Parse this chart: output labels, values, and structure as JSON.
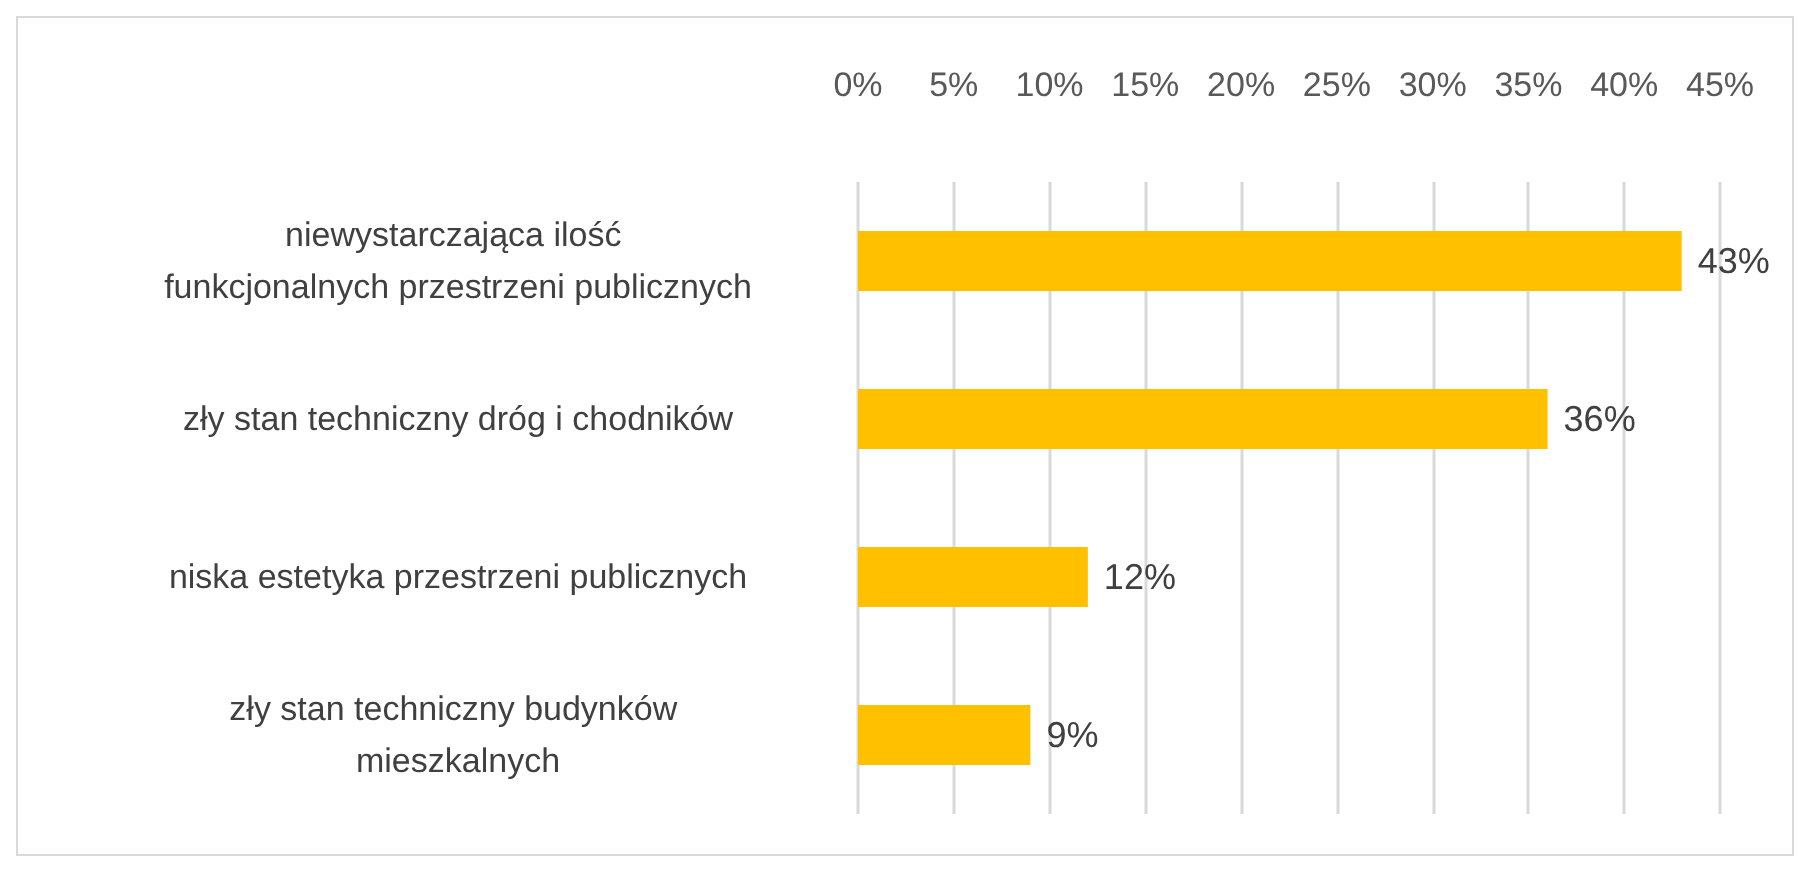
{
  "chart_data": {
    "type": "bar",
    "orientation": "horizontal",
    "categories": [
      "niewystarczająca ilość funkcjonalnych przestrzeni publicznych",
      "zły stan techniczny dróg i chodników",
      "niska estetyka przestrzeni publicznych",
      "zły stan techniczny budynków mieszkalnych"
    ],
    "values": [
      43,
      36,
      12,
      9
    ],
    "value_labels": [
      "43%",
      "36%",
      "12%",
      "9%"
    ],
    "color": "#ffc000",
    "xlim": [
      0,
      45
    ],
    "xticks": [
      {
        "value": 0,
        "label": "0%"
      },
      {
        "value": 5,
        "label": "5%"
      },
      {
        "value": 10,
        "label": "10%"
      },
      {
        "value": 15,
        "label": "15%"
      },
      {
        "value": 20,
        "label": "20%"
      },
      {
        "value": 25,
        "label": "25%"
      },
      {
        "value": 30,
        "label": "30%"
      },
      {
        "value": 35,
        "label": "35%"
      },
      {
        "value": 40,
        "label": "40%"
      },
      {
        "value": 45,
        "label": "45%"
      }
    ],
    "grid": "x"
  }
}
